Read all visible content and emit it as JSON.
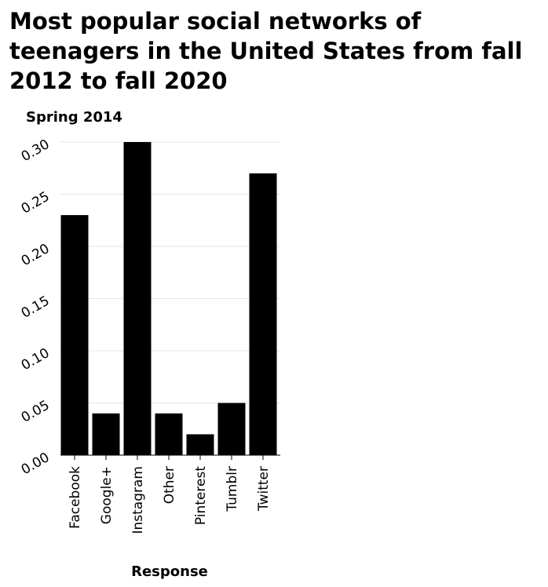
{
  "chart_data": {
    "type": "bar",
    "title": "Most popular social networks of teenagers in the United States from fall 2012 to fall 2020",
    "xlabel": "Response",
    "ylabel": "Spring 2014",
    "categories": [
      "Facebook",
      "Google+",
      "Instagram",
      "Other",
      "Pinterest",
      "Tumblr",
      "Twitter"
    ],
    "values": [
      0.23,
      0.04,
      0.3,
      0.04,
      0.02,
      0.05,
      0.27
    ],
    "ylim": [
      0,
      0.3
    ],
    "yticks": [
      "0.00",
      "0.05",
      "0.10",
      "0.15",
      "0.20",
      "0.25",
      "0.30"
    ],
    "grid": true,
    "bar_color": "#000000",
    "grid_color": "#e6e6e6"
  }
}
